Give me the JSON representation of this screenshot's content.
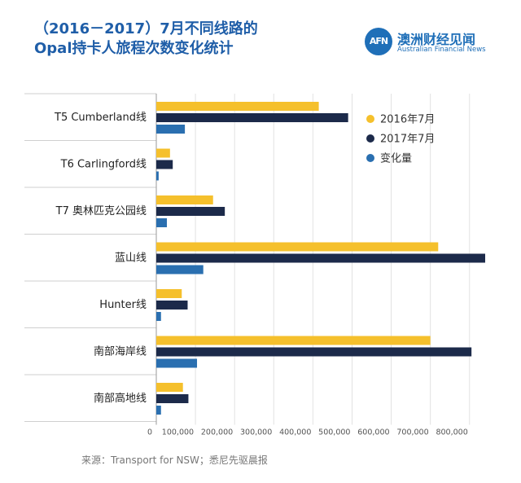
{
  "title_line1": "（2016－2017）7月不同线路的",
  "title_line2": "Opal持卡人旅程次数变化统计",
  "logo": {
    "badge": "AFN",
    "name_cn": "澳洲财经见闻",
    "name_en": "Australian Financial News"
  },
  "source": "来源：Transport for NSW；悉尼先驱晨报",
  "colors": {
    "s2016": "#f5c02c",
    "s2017": "#1c2a4a",
    "change": "#2a6fb0"
  },
  "chart_data": {
    "type": "bar",
    "orientation": "horizontal",
    "title": "（2016－2017）7月不同线路的Opal持卡人旅程次数变化统计",
    "categories": [
      "T5 Cumberland线",
      "T6 Carlingford线",
      "T7 奥林匹克公园线",
      "蓝山线",
      "Hunter线",
      "南部海岸线",
      "南部高地线"
    ],
    "series": [
      {
        "name": "2016年7月",
        "values": [
          415000,
          35000,
          145000,
          720000,
          65000,
          700000,
          68000
        ]
      },
      {
        "name": "2017年7月",
        "values": [
          490000,
          42000,
          175000,
          840000,
          80000,
          805000,
          82000
        ]
      },
      {
        "name": "变化量",
        "values": [
          73000,
          6000,
          27000,
          120000,
          12000,
          104000,
          12000
        ]
      }
    ],
    "x_ticks": [
      "0",
      "100,000",
      "200,000",
      "300,000",
      "400,000",
      "500,000",
      "600,000",
      "700,000",
      "800,000"
    ],
    "xlim": [
      0,
      840000
    ],
    "legend_position": "top-right"
  }
}
